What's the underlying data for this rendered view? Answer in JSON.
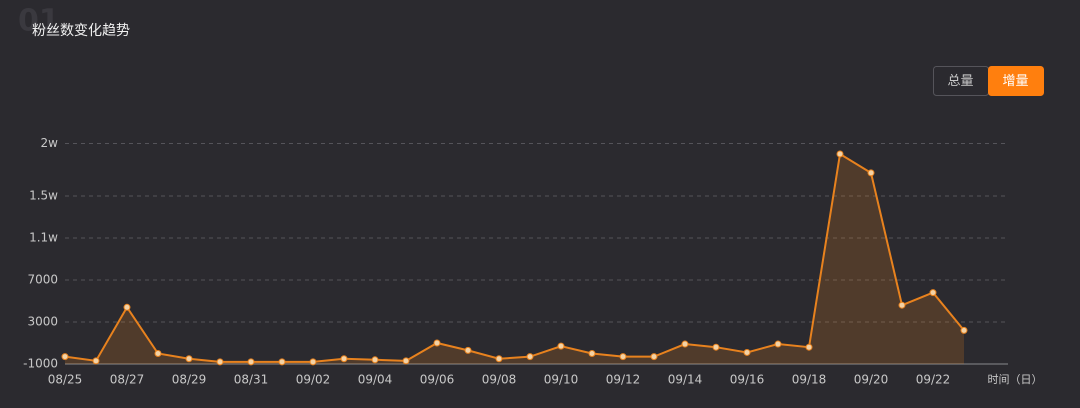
{
  "section_number": "01",
  "controls": {
    "options": [
      "总量",
      "增量"
    ],
    "active": 1
  },
  "chart_data": {
    "type": "line",
    "title": "粉丝数变化趋势",
    "x_label": "时间（日）",
    "categories": [
      "08/25",
      null,
      "08/27",
      null,
      "08/29",
      null,
      "08/31",
      null,
      "09/02",
      null,
      "09/04",
      null,
      "09/06",
      null,
      "09/08",
      null,
      "09/10",
      null,
      "09/12",
      null,
      "09/14",
      null,
      "09/16",
      null,
      "09/18",
      null,
      "09/20",
      null,
      "09/22",
      null
    ],
    "series": [
      {
        "name": "增量",
        "color": "#e8821e",
        "values": [
          -300,
          -700,
          4400,
          0,
          -500,
          -800,
          -800,
          -800,
          -800,
          -500,
          -600,
          -700,
          1000,
          300,
          -500,
          -300,
          700,
          0,
          -300,
          -300,
          900,
          600,
          100,
          900,
          600,
          19000,
          17200,
          4600,
          5800,
          2200
        ]
      }
    ],
    "ylim": [
      -1000,
      20000
    ],
    "yticks": [
      -1000,
      3000,
      7000,
      {
        "value": 11000,
        "label": "1.1w"
      },
      {
        "value": 15000,
        "label": "1.5w"
      },
      {
        "value": 20000,
        "label": "2w"
      }
    ],
    "grid": true
  }
}
